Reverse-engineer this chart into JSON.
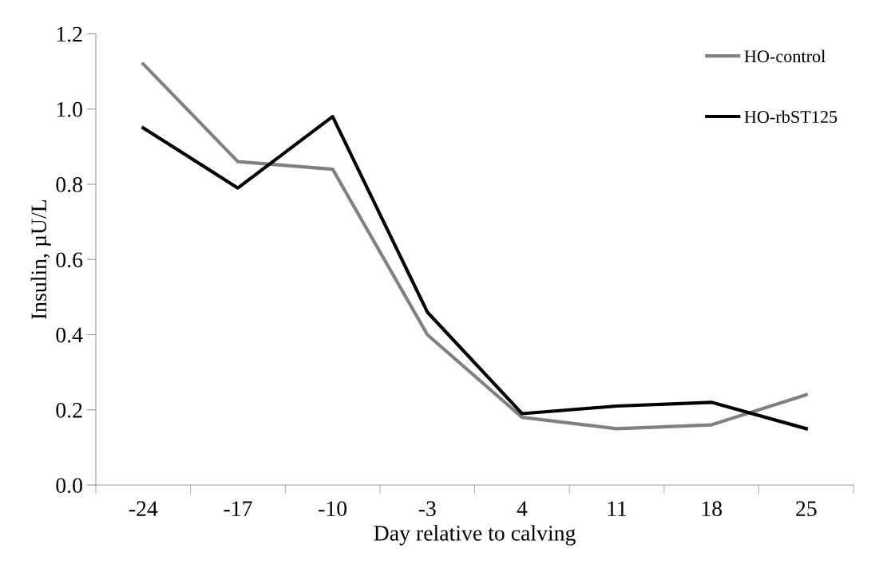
{
  "chart_data": {
    "type": "line",
    "xlabel": "Day relative to calving",
    "ylabel": "Insulin, µU/L",
    "categories": [
      "-24",
      "-17",
      "-10",
      "-3",
      "4",
      "11",
      "18",
      "25"
    ],
    "series": [
      {
        "name": "HO-control",
        "color": "#808080",
        "values": [
          1.12,
          0.86,
          0.84,
          0.4,
          0.18,
          0.15,
          0.16,
          0.24
        ]
      },
      {
        "name": "HO-rbST125",
        "color": "#000000",
        "values": [
          0.95,
          0.79,
          0.98,
          0.46,
          0.19,
          0.21,
          0.22,
          0.15
        ]
      }
    ],
    "ylim": [
      0,
      1.2
    ],
    "yticks": [
      {
        "value": 0,
        "label": "0.0"
      },
      0.2,
      0.4,
      0.6,
      0.8,
      {
        "value": 1.0,
        "label": "1.0"
      },
      1.2
    ],
    "legend": "top right",
    "grid": false,
    "marker": "none",
    "line_style": "solid"
  }
}
